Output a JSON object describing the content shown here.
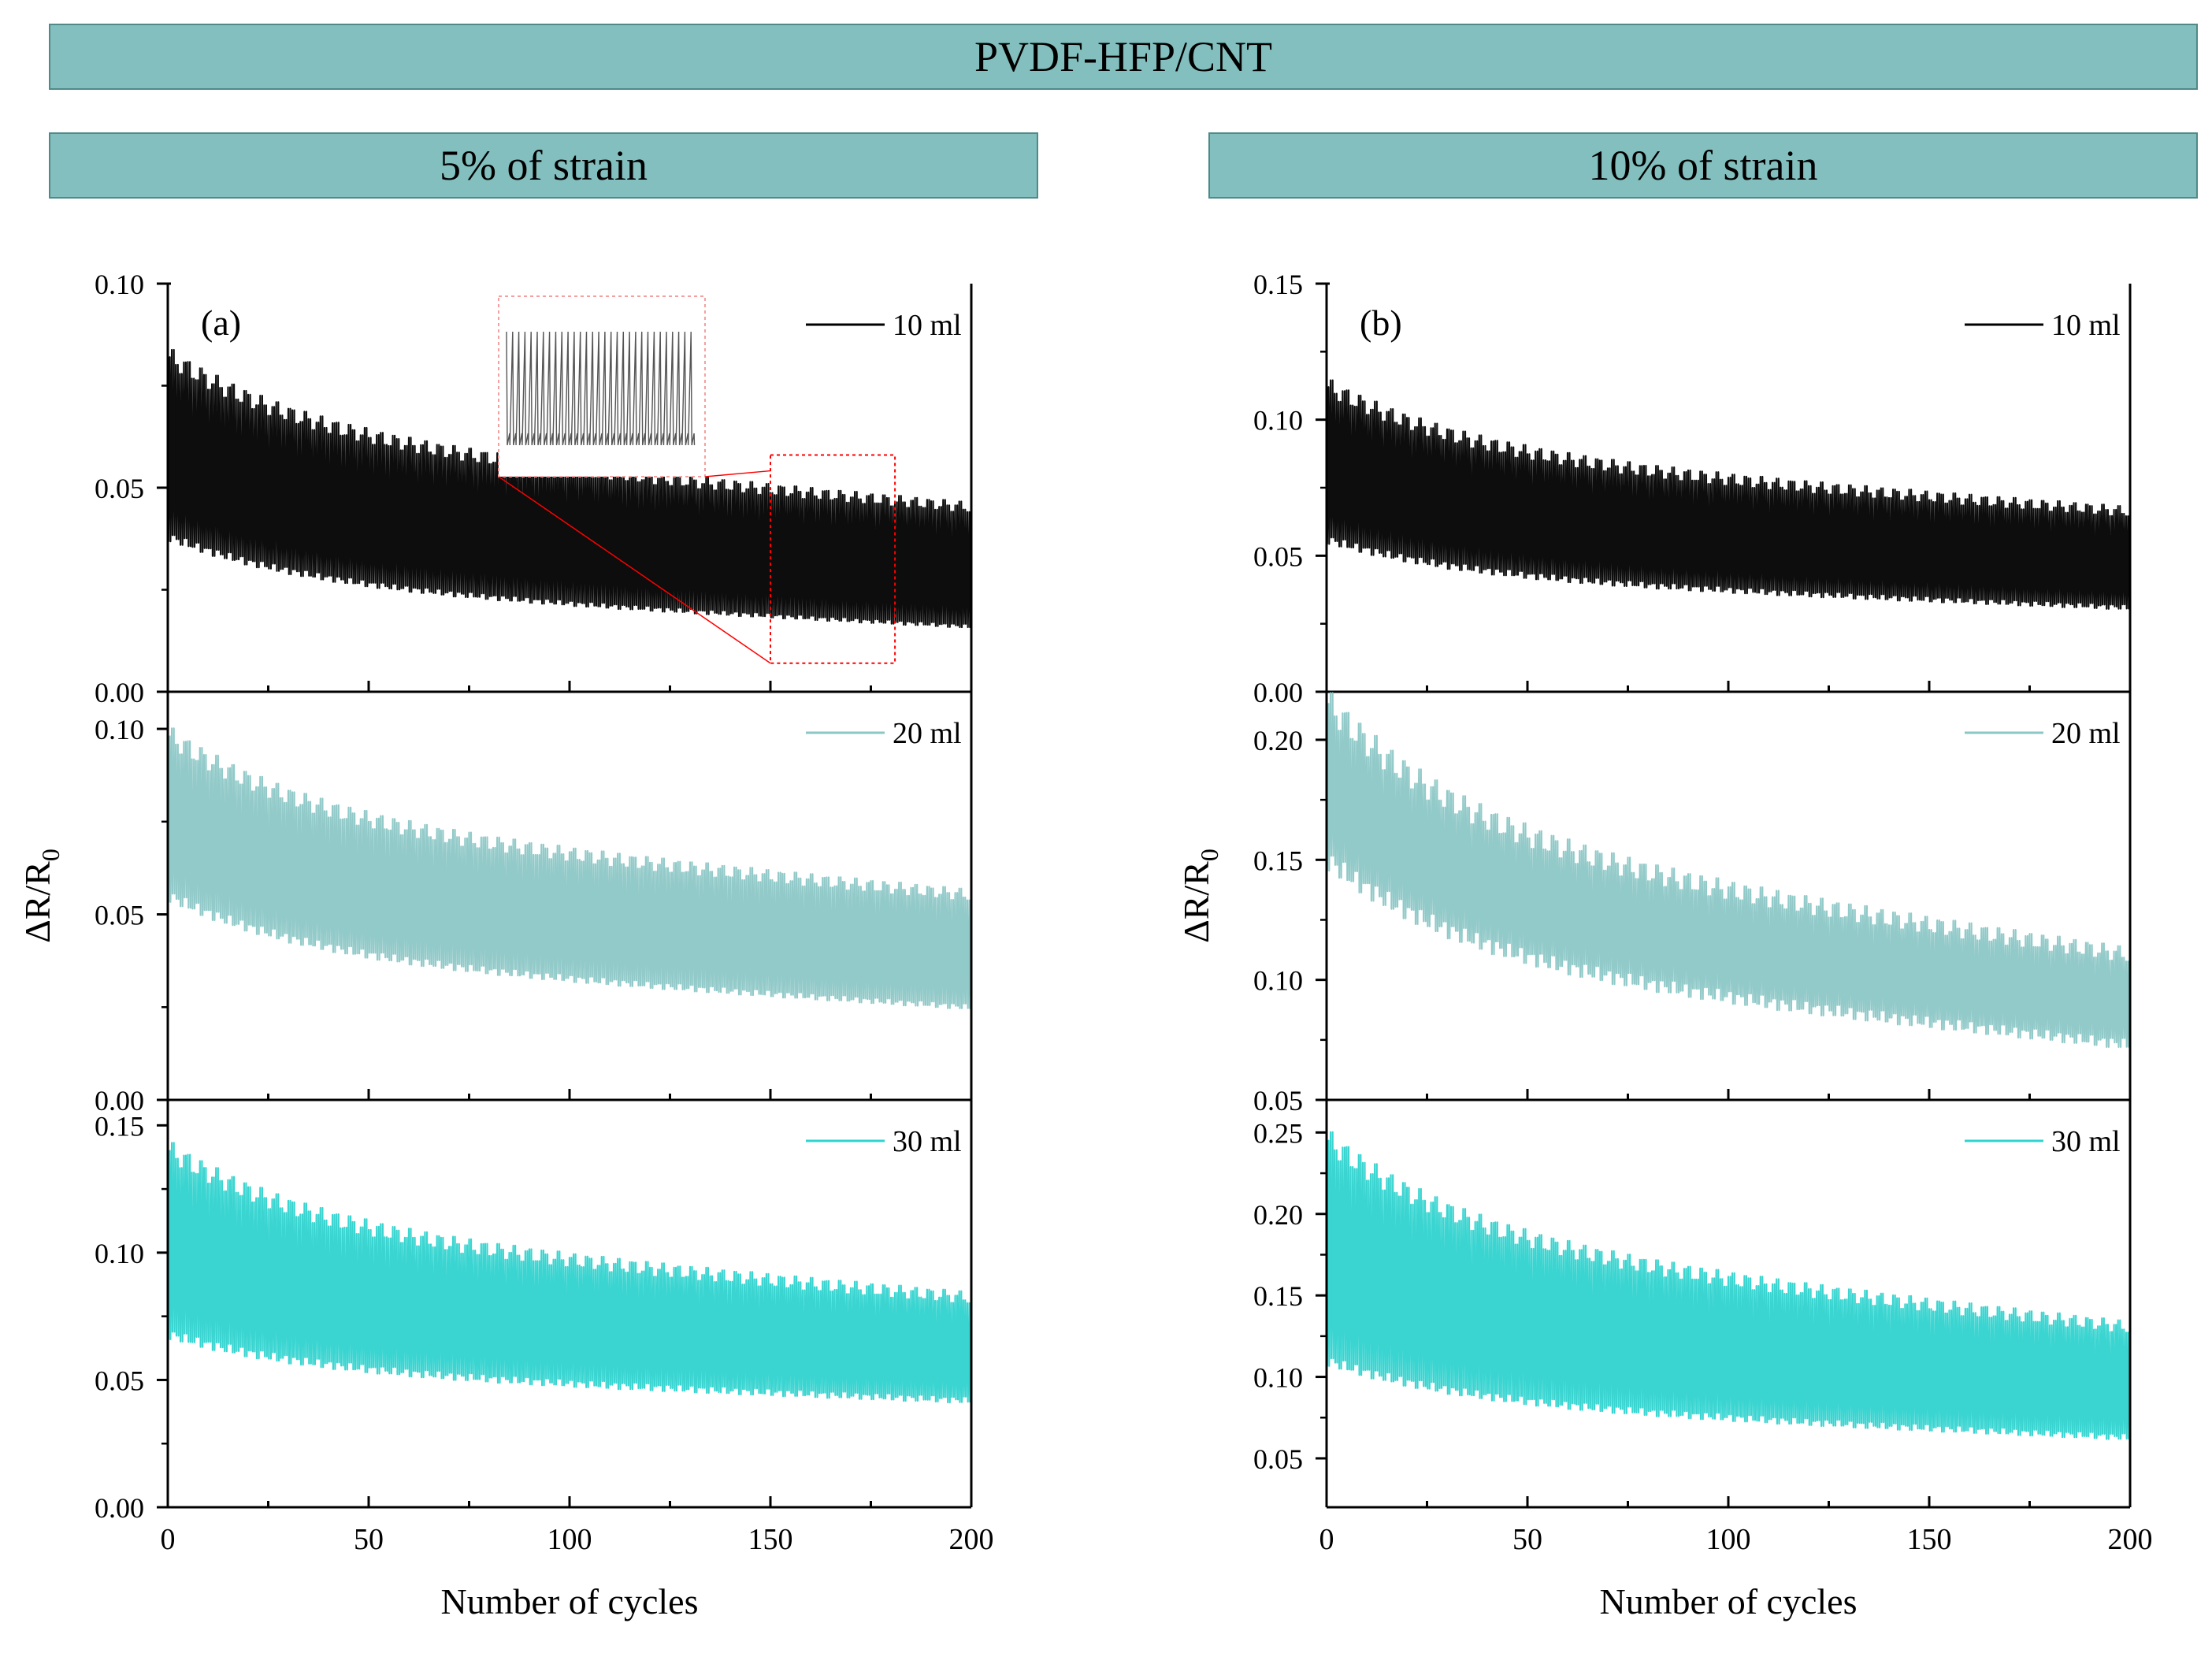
{
  "header": {
    "title": "PVDF-HFP/CNT",
    "left_panel_title": "5% of strain",
    "right_panel_title": "10% of strain"
  },
  "colors": {
    "banner": "#83bfbe",
    "series_10ml": "#000000",
    "series_20ml": "#8cc7c6",
    "series_30ml": "#2fd3cf",
    "inset": "#ff0000"
  },
  "chart_data": [
    {
      "type": "line",
      "panel_label": "(a)",
      "xlabel": "Number of cycles",
      "ylabel": "ΔR/R",
      "ylabel_sub": "0",
      "xlim": [
        0,
        200
      ],
      "xticks": [
        "0",
        "50",
        "100",
        "150",
        "200"
      ],
      "subplots": [
        {
          "name": "10 ml",
          "color": "#000000",
          "ylim": [
            0,
            0.1
          ],
          "yticks": [
            "0.00",
            "0.05",
            "0.10"
          ],
          "cycles": 200,
          "max_start": 0.082,
          "max_end": 0.045,
          "min_start": 0.038,
          "min_end": 0.016,
          "inset": true
        },
        {
          "name": "20 ml",
          "color": "#8cc7c6",
          "ylim": [
            0,
            0.11
          ],
          "yticks": [
            "0.00",
            "0.05",
            "0.10"
          ],
          "cycles": 200,
          "max_start": 0.098,
          "max_end": 0.055,
          "min_start": 0.055,
          "min_end": 0.025,
          "inset": false
        },
        {
          "name": "30 ml",
          "color": "#2fd3cf",
          "ylim": [
            0,
            0.16
          ],
          "yticks": [
            "0.00",
            "0.05",
            "0.10",
            "0.15"
          ],
          "cycles": 200,
          "max_start": 0.14,
          "max_end": 0.082,
          "min_start": 0.068,
          "min_end": 0.042,
          "inset": false
        }
      ]
    },
    {
      "type": "line",
      "panel_label": "(b)",
      "xlabel": "Number of cycles",
      "ylabel": "ΔR/R",
      "ylabel_sub": "0",
      "xlim": [
        0,
        200
      ],
      "xticks": [
        "0",
        "50",
        "100",
        "150",
        "200"
      ],
      "subplots": [
        {
          "name": "10 ml",
          "color": "#000000",
          "ylim": [
            0,
            0.15
          ],
          "yticks": [
            "0.00",
            "0.05",
            "0.10",
            "0.15"
          ],
          "cycles": 200,
          "max_start": 0.112,
          "max_end": 0.066,
          "min_start": 0.056,
          "min_end": 0.031,
          "inset": false
        },
        {
          "name": "20 ml",
          "color": "#8cc7c6",
          "ylim": [
            0.05,
            0.22
          ],
          "yticks": [
            "0.05",
            "0.10",
            "0.15",
            "0.20"
          ],
          "cycles": 200,
          "max_start": 0.215,
          "max_end": 0.11,
          "min_start": 0.15,
          "min_end": 0.073,
          "inset": false
        },
        {
          "name": "30 ml",
          "color": "#2fd3cf",
          "ylim": [
            0.02,
            0.27
          ],
          "yticks": [
            "0.05",
            "0.10",
            "0.15",
            "0.20",
            "0.25"
          ],
          "cycles": 200,
          "max_start": 0.245,
          "max_end": 0.13,
          "min_start": 0.11,
          "min_end": 0.063,
          "inset": false
        }
      ]
    }
  ]
}
